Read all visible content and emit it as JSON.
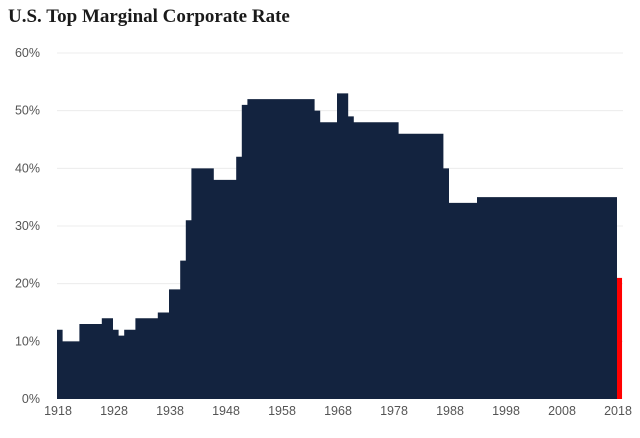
{
  "title": "U.S. Top Marginal Corporate Rate",
  "colors": {
    "area": "#13233f",
    "highlight": "#ff0000",
    "gridline": "#ececec",
    "tick_text": "#555555"
  },
  "chart_data": {
    "type": "area",
    "title": "U.S. Top Marginal Corporate Rate",
    "xlabel": "",
    "ylabel": "",
    "xlim": [
      1918,
      2018
    ],
    "ylim": [
      0,
      60
    ],
    "grid": false,
    "x_ticks": [
      "1918",
      "1928",
      "1938",
      "1948",
      "1958",
      "1968",
      "1978",
      "1988",
      "1998",
      "2008",
      "2018"
    ],
    "y_ticks": [
      "0%",
      "10%",
      "20%",
      "30%",
      "40%",
      "50%",
      "60%"
    ],
    "x_tick_values": [
      1918,
      1928,
      1938,
      1948,
      1958,
      1968,
      1978,
      1988,
      1998,
      2008,
      2018
    ],
    "y_tick_values": [
      0,
      10,
      20,
      30,
      40,
      50,
      60
    ],
    "series": [
      {
        "x": [
          1918,
          1919,
          1922,
          1926,
          1928,
          1929,
          1930,
          1932,
          1936,
          1938,
          1940,
          1941,
          1942,
          1946,
          1950,
          1951,
          1952,
          1964,
          1965,
          1968,
          1970,
          1971,
          1979,
          1987,
          1988,
          1993,
          2017
        ],
        "values": [
          12,
          10,
          13,
          14,
          12,
          11,
          12,
          14,
          15,
          19,
          24,
          31,
          40,
          38,
          42,
          51,
          52,
          50,
          48,
          53,
          49,
          48,
          46,
          40,
          34,
          35,
          35
        ]
      },
      {
        "x": [
          2018
        ],
        "values": [
          21
        ],
        "highlight": true
      }
    ]
  }
}
